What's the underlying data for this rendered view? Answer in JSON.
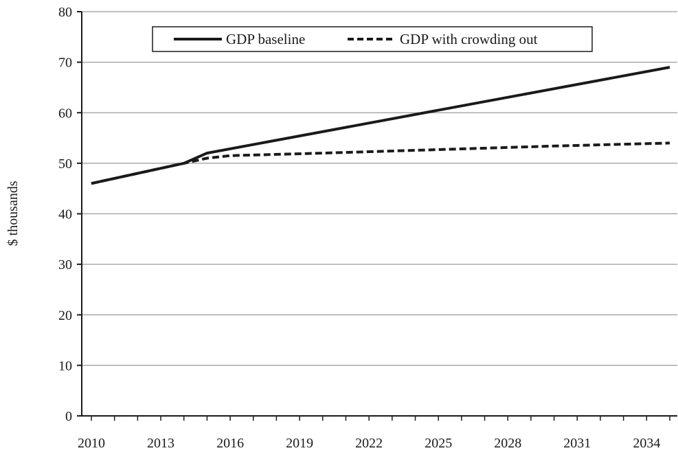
{
  "chart_data": {
    "type": "line",
    "title": "",
    "xlabel": "",
    "ylabel": "$ thousands",
    "ylim": [
      0,
      80
    ],
    "yticks": [
      0,
      10,
      20,
      30,
      40,
      50,
      60,
      70,
      80
    ],
    "xlim": [
      2010,
      2035
    ],
    "xtick_labels": [
      "2010",
      "2013",
      "2016",
      "2019",
      "2022",
      "2025",
      "2028",
      "2031",
      "2034"
    ],
    "grid": "horizontal",
    "legend_position": "top-center",
    "series": [
      {
        "name": "GDP baseline",
        "style": "solid",
        "color": "#1a1a1a",
        "points": [
          [
            2010,
            46
          ],
          [
            2014,
            50
          ],
          [
            2015,
            52
          ],
          [
            2035,
            69
          ]
        ]
      },
      {
        "name": "GDP with crowding out",
        "style": "dashed",
        "color": "#1a1a1a",
        "points": [
          [
            2010,
            46
          ],
          [
            2014,
            50
          ],
          [
            2015,
            51
          ],
          [
            2016,
            51.5
          ],
          [
            2020,
            52
          ],
          [
            2025,
            52.7
          ],
          [
            2030,
            53.4
          ],
          [
            2035,
            54
          ]
        ]
      }
    ]
  }
}
